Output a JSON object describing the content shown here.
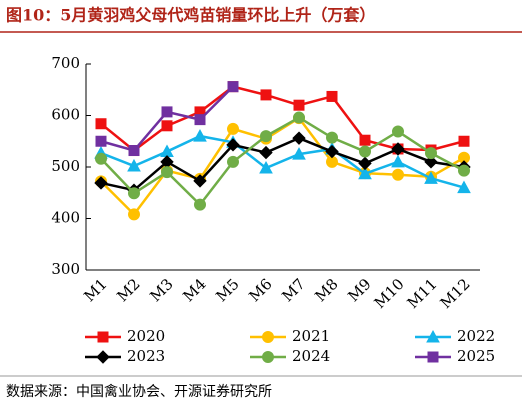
{
  "chart_data": {
    "type": "line",
    "title": "图10：5月黄羽鸡父母代鸡苗销量环比上升（万套）",
    "source": "数据来源：中国禽业协会、开源证券研究所",
    "categories": [
      "M1",
      "M2",
      "M3",
      "M4",
      "M5",
      "M6",
      "M7",
      "M8",
      "M9",
      "M10",
      "M11",
      "M12"
    ],
    "series": [
      {
        "name": "2020",
        "color": "#ee1111",
        "marker": "square",
        "values": [
          584,
          532,
          580,
          607,
          656,
          640,
          620,
          637,
          552,
          535,
          533,
          550
        ]
      },
      {
        "name": "2021",
        "color": "#ffc000",
        "marker": "circle",
        "values": [
          472,
          408,
          493,
          477,
          574,
          555,
          595,
          510,
          488,
          485,
          481,
          518
        ]
      },
      {
        "name": "2022",
        "color": "#14b4ea",
        "marker": "triangle",
        "values": [
          527,
          502,
          530,
          560,
          548,
          498,
          525,
          535,
          487,
          510,
          478,
          460
        ]
      },
      {
        "name": "2023",
        "color": "#000000",
        "marker": "diamond",
        "values": [
          469,
          455,
          510,
          473,
          543,
          528,
          556,
          530,
          507,
          535,
          510,
          500
        ]
      },
      {
        "name": "2024",
        "color": "#70ad47",
        "marker": "circle",
        "values": [
          516,
          449,
          490,
          427,
          510,
          560,
          596,
          557,
          530,
          569,
          527,
          493
        ]
      },
      {
        "name": "2025",
        "color": "#7030a0",
        "marker": "square",
        "values": [
          550,
          532,
          607,
          592,
          656,
          null,
          null,
          null,
          null,
          null,
          null,
          null
        ]
      }
    ],
    "ylim": [
      300,
      700
    ],
    "yticks": [
      300,
      400,
      500,
      600,
      700
    ]
  }
}
